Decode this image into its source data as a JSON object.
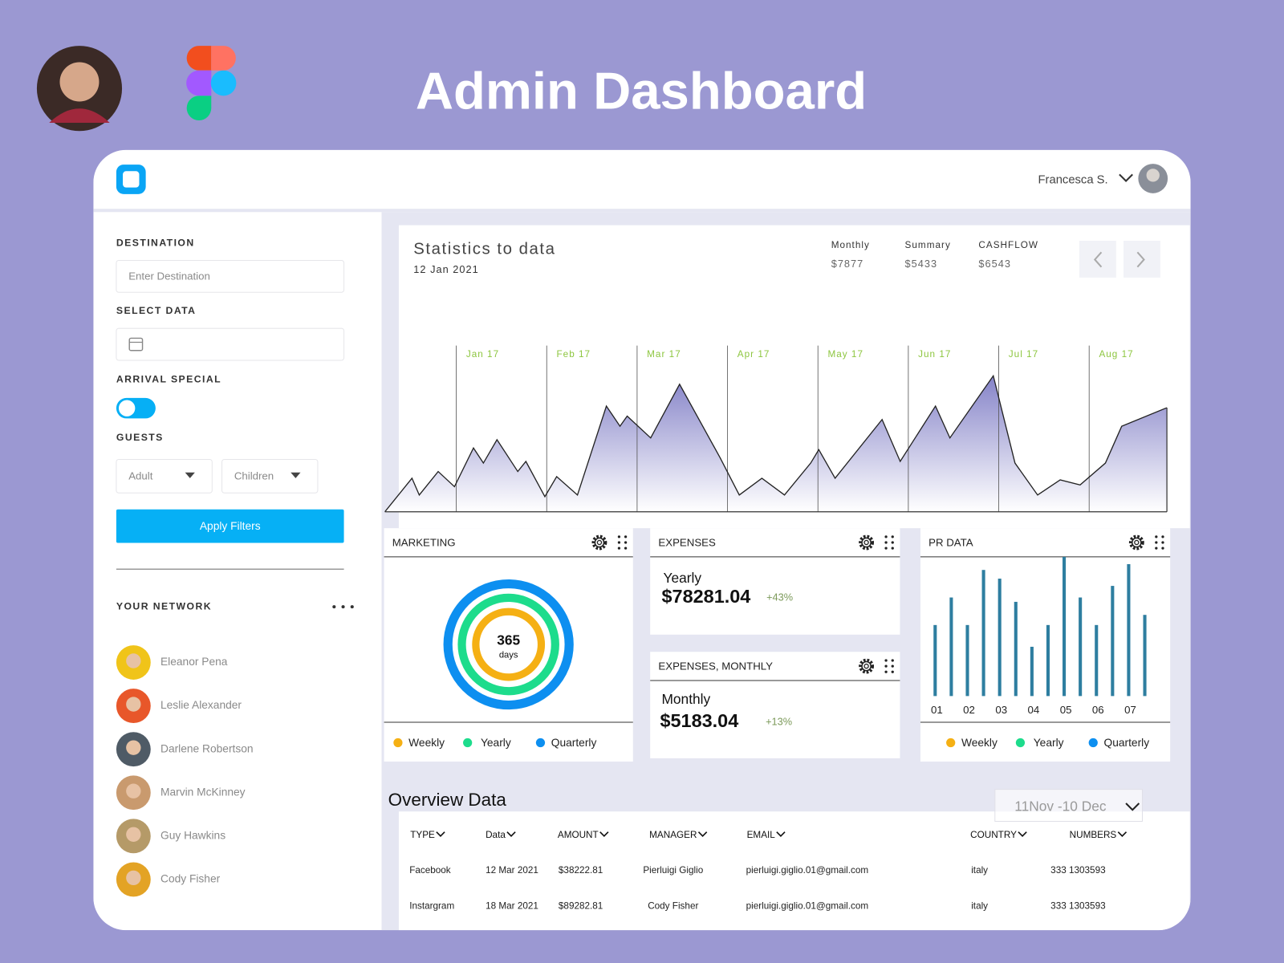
{
  "header": {
    "title": "Admin Dashboard"
  },
  "topbar": {
    "user": "Francesca S."
  },
  "filters": {
    "destination_label": "DESTINATION",
    "destination_placeholder": "Enter Destination",
    "date_label": "SELECT DATA",
    "arrival_label": "ARRIVAL SPECIAL",
    "guests_label": "GUESTS",
    "guest_options": [
      "Adult",
      "Children"
    ],
    "button": "Apply Filters"
  },
  "network": {
    "title": "YOUR NETWORK",
    "people": [
      "Eleanor Pena",
      "Leslie Alexander",
      "Darlene Robertson",
      "Marvin McKinney",
      "Guy Hawkins",
      "Cody Fisher"
    ]
  },
  "statistics": {
    "title": "Statistics to data",
    "date": "12 Jan 2021",
    "summary": [
      {
        "label": "Monthly",
        "value": "$7877"
      },
      {
        "label": "Summary",
        "value": "$5433"
      },
      {
        "label": "CASHFLOW",
        "value": "$6543"
      }
    ]
  },
  "marketing": {
    "title": "MARKETING",
    "center_value": "365",
    "center_unit": "days",
    "legend": [
      {
        "name": "Weekly",
        "color": "#f5b014"
      },
      {
        "name": "Yearly",
        "color": "#1ddc8c"
      },
      {
        "name": "Quarterly",
        "color": "#0d8ff0"
      }
    ]
  },
  "expenses": [
    {
      "title": "EXPENSES",
      "period": "Yearly",
      "amount": "$78281.04",
      "change": "+43%"
    },
    {
      "title": "EXPENSES, MONTHLY",
      "period": "Monthly",
      "amount": "$5183.04",
      "change": "+13%"
    }
  ],
  "pr_data": {
    "title": "PR DATA",
    "legend": [
      {
        "name": "Weekly",
        "color": "#f5b014"
      },
      {
        "name": "Yearly",
        "color": "#1ddc8c"
      },
      {
        "name": "Quarterly",
        "color": "#0d8ff0"
      }
    ]
  },
  "overview": {
    "title": "Overview Data",
    "range": "11Nov -10 Dec",
    "columns": [
      "TYPE",
      "Data",
      "AMOUNT",
      "MANAGER",
      "EMAIL",
      "COUNTRY",
      "NUMBERS"
    ],
    "rows": [
      [
        "Facebook",
        "12 Mar 2021",
        "$38222.81",
        "Pierluigi Giglio",
        "pierluigi.giglio.01@gmail.com",
        "italy",
        "333 1303593"
      ],
      [
        "Instargram",
        "18 Mar 2021",
        "$89282.81",
        "Cody Fisher",
        "pierluigi.giglio.01@gmail.com",
        "italy",
        "333 1303593"
      ]
    ]
  },
  "chart_data": [
    {
      "type": "area",
      "color": "#8583c8",
      "x": [
        0.21,
        0.51,
        0.59,
        0.8,
        0.98,
        1.19,
        1.3,
        1.45,
        1.68,
        1.77,
        1.98,
        2.11,
        2.34,
        2.66,
        2.81,
        2.89,
        3.15,
        3.47,
        3.92,
        4.13,
        4.38,
        4.63,
        4.92,
        5.01,
        5.19,
        5.71,
        5.91,
        6.3,
        6.46,
        6.94,
        7.18,
        7.43,
        7.68,
        7.9,
        8.18,
        8.36,
        8.86
      ],
      "values": [
        0,
        20,
        10,
        24,
        15,
        38,
        29,
        43,
        24,
        30,
        9,
        21,
        10,
        63,
        51,
        57,
        44,
        76,
        32,
        10,
        20,
        10,
        29,
        37,
        20,
        55,
        30,
        63,
        44,
        81,
        29,
        10,
        19,
        16,
        29,
        51,
        62
      ],
      "xlim": [
        0.21,
        8.86
      ],
      "ylim": [
        0,
        100
      ],
      "xticks": [
        {
          "value": 1,
          "label": "Jan 17"
        },
        {
          "value": 2,
          "label": "Feb 17"
        },
        {
          "value": 3,
          "label": "Mar 17"
        },
        {
          "value": 4,
          "label": "Apr 17"
        },
        {
          "value": 5,
          "label": "May 17"
        },
        {
          "value": 6,
          "label": "Jun 17"
        },
        {
          "value": 7,
          "label": "Jul 17"
        },
        {
          "value": 8,
          "label": "Aug 17"
        }
      ]
    },
    {
      "type": "bar",
      "color": "#2e7ea0",
      "categories": [
        "01",
        null,
        "02",
        null,
        "03",
        null,
        "04",
        null,
        "05",
        null,
        "06",
        null,
        "07",
        null
      ],
      "values": [
        49,
        68,
        49,
        87,
        81,
        65,
        34,
        49,
        96,
        68,
        49,
        76,
        91,
        56
      ],
      "ylim": [
        0,
        100
      ]
    }
  ]
}
